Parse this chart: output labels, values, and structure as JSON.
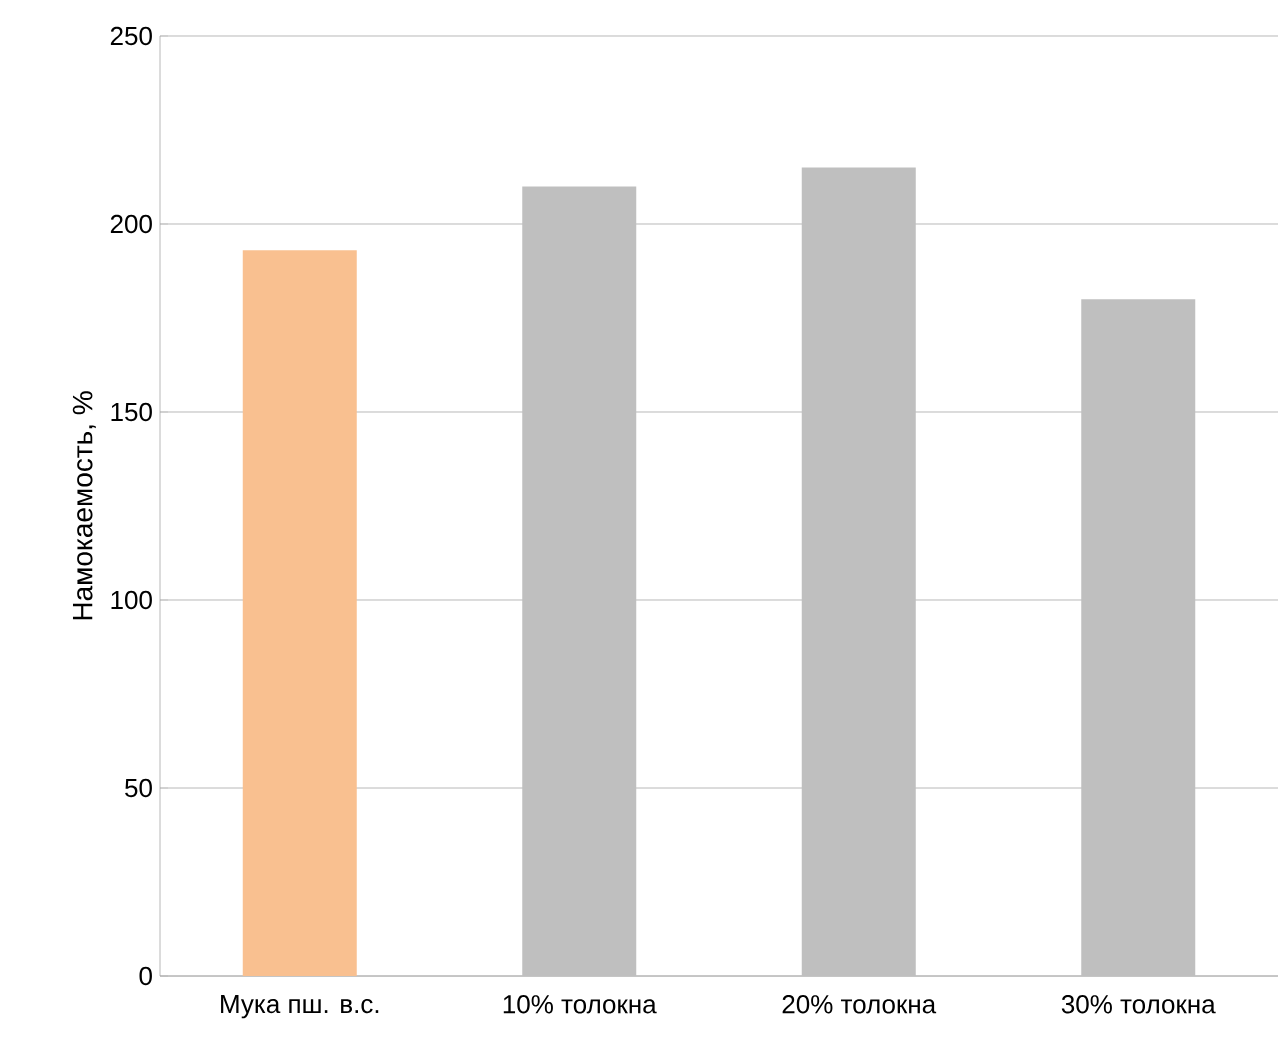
{
  "chart_data": {
    "type": "bar",
    "ylabel": "Намокаемость, %",
    "categories": [
      "Мука пш. в.с.",
      "10% толокна",
      "20% толокна",
      "30% толокна"
    ],
    "values": [
      193,
      210,
      215,
      180
    ],
    "colors": [
      "#f9c090",
      "#bfbfbf",
      "#bfbfbf",
      "#bfbfbf"
    ],
    "ylim": [
      0,
      250
    ],
    "yticks": [
      0,
      50,
      100,
      150,
      200,
      250
    ],
    "grid": "y"
  }
}
